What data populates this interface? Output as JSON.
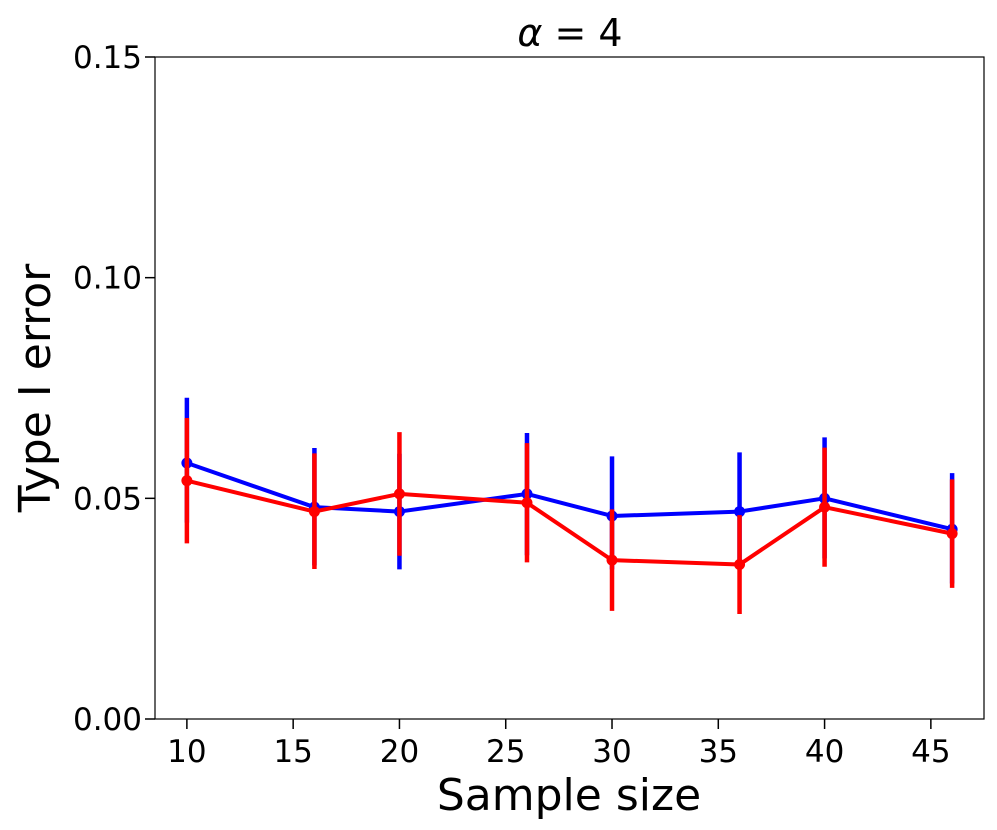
{
  "chart_data": {
    "type": "line",
    "title_symbol": "α",
    "title_rest": " = 4",
    "xlabel": "Sample size",
    "ylabel": "Type I error",
    "xlim": [
      8.5,
      47.5
    ],
    "ylim": [
      0,
      0.15
    ],
    "xticks": [
      10,
      15,
      20,
      25,
      30,
      35,
      40,
      45
    ],
    "xtick_labels": [
      "10",
      "15",
      "20",
      "25",
      "30",
      "35",
      "40",
      "45"
    ],
    "yticks": [
      0,
      0.05,
      0.1,
      0.15
    ],
    "ytick_labels": [
      "0.00",
      "0.05",
      "0.10",
      "0.15"
    ],
    "grid": false,
    "series": [
      {
        "name": "blue series",
        "color": "#0000ff",
        "x": [
          10,
          16,
          20,
          26,
          30,
          36,
          40,
          46
        ],
        "values": [
          0.058,
          0.048,
          0.047,
          0.051,
          0.046,
          0.047,
          0.05,
          0.043
        ],
        "err_low": [
          0.0445,
          0.0348,
          0.0339,
          0.0371,
          0.0339,
          0.0348,
          0.0364,
          0.0307
        ],
        "err_high": [
          0.0728,
          0.0614,
          0.0601,
          0.0648,
          0.0595,
          0.0604,
          0.0638,
          0.0557
        ]
      },
      {
        "name": "red series",
        "color": "#ff0000",
        "x": [
          10,
          16,
          20,
          26,
          30,
          36,
          40,
          46
        ],
        "values": [
          0.054,
          0.047,
          0.051,
          0.049,
          0.036,
          0.035,
          0.048,
          0.042
        ],
        "err_low": [
          0.0398,
          0.034,
          0.037,
          0.0355,
          0.0245,
          0.0238,
          0.0345,
          0.0297
        ],
        "err_high": [
          0.0682,
          0.0602,
          0.065,
          0.0625,
          0.0475,
          0.0462,
          0.0615,
          0.0543
        ]
      }
    ]
  }
}
